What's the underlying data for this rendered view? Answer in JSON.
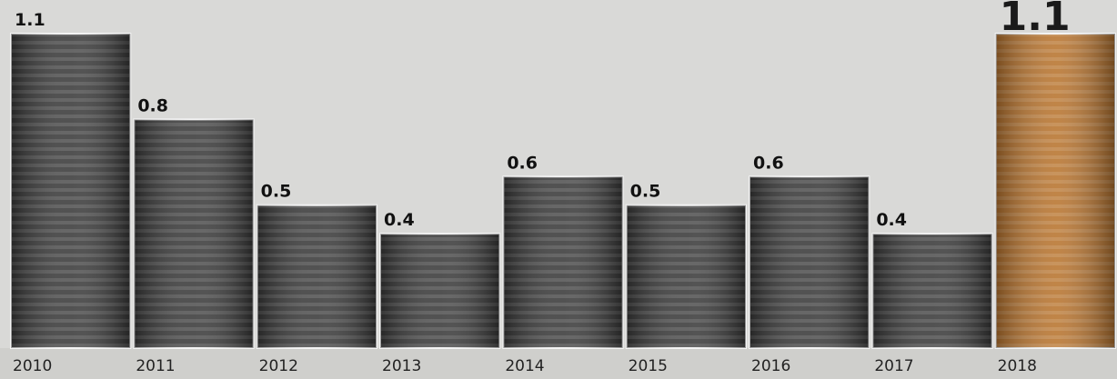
{
  "chart_data": {
    "type": "bar",
    "categories": [
      "2010",
      "2011",
      "2012",
      "2013",
      "2014",
      "2015",
      "2016",
      "2017",
      "2018"
    ],
    "values": [
      1.1,
      0.8,
      0.5,
      0.4,
      0.6,
      0.5,
      0.6,
      0.4,
      1.1
    ],
    "colors": [
      "#3a3a3a",
      "#3a3a3a",
      "#3a3a3a",
      "#3a3a3a",
      "#3a3a3a",
      "#3a3a3a",
      "#3a3a3a",
      "#3a3a3a",
      "#b8742e"
    ]
  }
}
